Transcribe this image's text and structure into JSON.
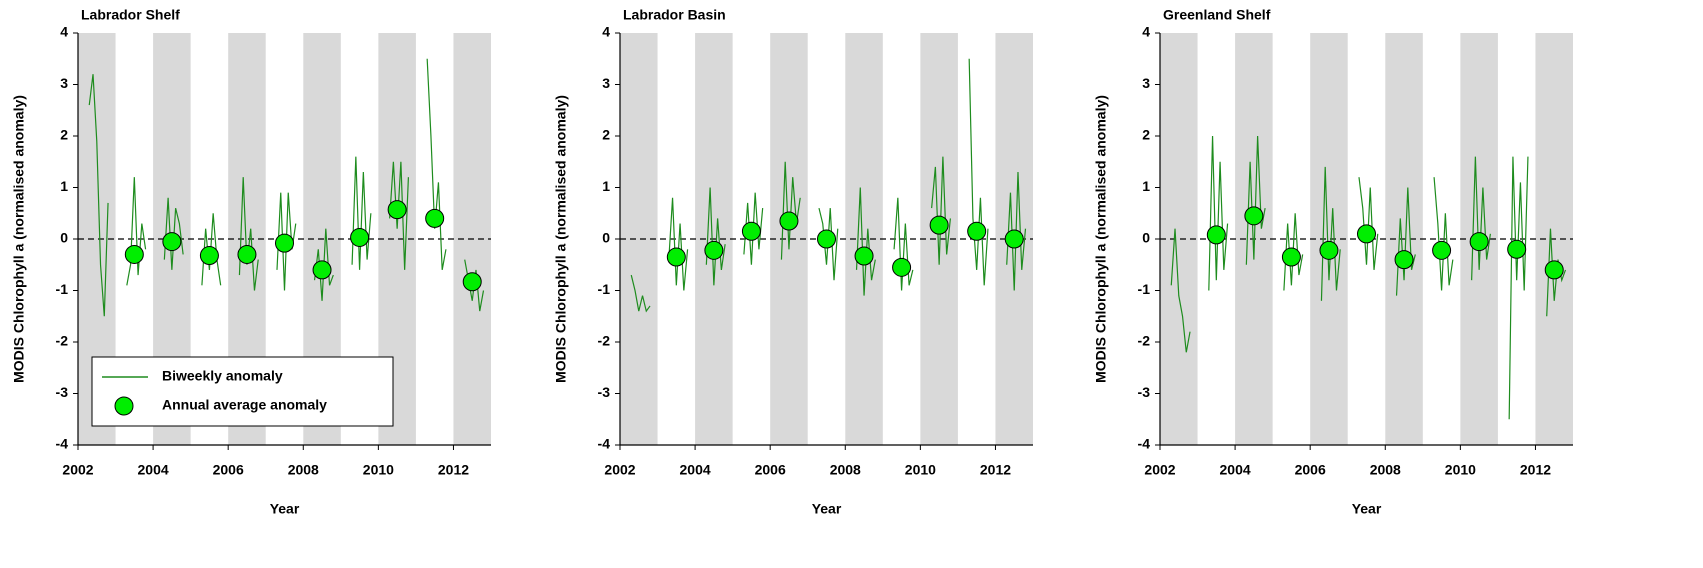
{
  "chart_data": [
    {
      "type": "line",
      "title": "Labrador Shelf",
      "xlabel": "Year",
      "ylabel": "MODIS Chlorophyll a (normalised anomaly)",
      "xlim": [
        2002,
        2013
      ],
      "xticks": [
        2002,
        2004,
        2006,
        2008,
        2010,
        2012
      ],
      "ylim": [
        -4,
        4
      ],
      "yticks": [
        -4,
        -3,
        -2,
        -1,
        0,
        1,
        2,
        3,
        4
      ],
      "legend": "lower left",
      "series": [
        {
          "name": "Biweekly anomaly",
          "color": "#1e8c1e",
          "x": [
            2002.3,
            2002.4,
            2002.5,
            2002.6,
            2002.7,
            2002.8,
            2002.95,
            2003.3,
            2003.4,
            2003.5,
            2003.6,
            2003.7,
            2003.8,
            2003.95,
            2004.3,
            2004.4,
            2004.5,
            2004.6,
            2004.7,
            2004.8,
            2004.95,
            2005.3,
            2005.4,
            2005.5,
            2005.6,
            2005.7,
            2005.8,
            2005.95,
            2006.3,
            2006.4,
            2006.5,
            2006.6,
            2006.7,
            2006.8,
            2006.95,
            2007.3,
            2007.4,
            2007.5,
            2007.6,
            2007.7,
            2007.8,
            2007.95,
            2008.3,
            2008.4,
            2008.5,
            2008.6,
            2008.7,
            2008.8,
            2008.95,
            2009.3,
            2009.4,
            2009.5,
            2009.6,
            2009.7,
            2009.8,
            2009.95,
            2010.3,
            2010.4,
            2010.5,
            2010.6,
            2010.7,
            2010.8,
            2010.95,
            2011.3,
            2011.4,
            2011.5,
            2011.6,
            2011.7,
            2011.8,
            2011.95,
            2012.3,
            2012.4,
            2012.5,
            2012.6,
            2012.7,
            2012.8,
            2012.95
          ],
          "values": [
            2.6,
            3.2,
            1.9,
            -0.5,
            -1.5,
            0.7,
            null,
            -0.9,
            -0.5,
            1.2,
            -0.7,
            0.3,
            -0.2,
            null,
            -0.4,
            0.8,
            -0.6,
            0.6,
            0.3,
            -0.3,
            null,
            -0.9,
            0.2,
            -0.6,
            0.5,
            -0.4,
            -0.9,
            null,
            -0.7,
            1.2,
            -0.5,
            0.2,
            -1.0,
            -0.4,
            null,
            -0.6,
            0.9,
            -1.0,
            0.9,
            -0.2,
            0.3,
            null,
            -0.8,
            -0.2,
            -1.2,
            0.2,
            -0.9,
            -0.7,
            null,
            -0.5,
            1.6,
            -0.6,
            1.3,
            -0.4,
            0.5,
            null,
            0.4,
            1.5,
            0.2,
            1.5,
            -0.6,
            1.2,
            null,
            3.5,
            2.0,
            0.2,
            1.1,
            -0.6,
            -0.2,
            null,
            -0.4,
            -0.8,
            -1.2,
            -0.6,
            -1.4,
            -1.0,
            null
          ]
        },
        {
          "name": "Annual average anomaly",
          "color": "#00ee00",
          "marker": "circle",
          "x": [
            2003.5,
            2004.5,
            2005.5,
            2006.5,
            2007.5,
            2008.5,
            2009.5,
            2010.5,
            2011.5,
            2012.5
          ],
          "values": [
            -0.3,
            -0.05,
            -0.32,
            -0.3,
            -0.08,
            -0.6,
            0.03,
            0.57,
            0.4,
            -0.83
          ]
        }
      ]
    },
    {
      "type": "line",
      "title": "Labrador Basin",
      "xlabel": "Year",
      "ylabel": "MODIS Chlorophyll a (normalised anomaly)",
      "xlim": [
        2002,
        2013
      ],
      "xticks": [
        2002,
        2004,
        2006,
        2008,
        2010,
        2012
      ],
      "ylim": [
        -4,
        4
      ],
      "yticks": [
        -4,
        -3,
        -2,
        -1,
        0,
        1,
        2,
        3,
        4
      ],
      "series": [
        {
          "color": "#1e8c1e",
          "x": [
            2002.3,
            2002.4,
            2002.5,
            2002.6,
            2002.7,
            2002.8,
            2002.95,
            2003.3,
            2003.4,
            2003.5,
            2003.6,
            2003.7,
            2003.8,
            2003.95,
            2004.3,
            2004.4,
            2004.5,
            2004.6,
            2004.7,
            2004.8,
            2004.95,
            2005.3,
            2005.4,
            2005.5,
            2005.6,
            2005.7,
            2005.8,
            2005.95,
            2006.3,
            2006.4,
            2006.5,
            2006.6,
            2006.7,
            2006.8,
            2006.95,
            2007.3,
            2007.4,
            2007.5,
            2007.6,
            2007.7,
            2007.8,
            2007.95,
            2008.3,
            2008.4,
            2008.5,
            2008.6,
            2008.7,
            2008.8,
            2008.95,
            2009.3,
            2009.4,
            2009.5,
            2009.6,
            2009.7,
            2009.8,
            2009.95,
            2010.3,
            2010.4,
            2010.5,
            2010.6,
            2010.7,
            2010.8,
            2010.95,
            2011.3,
            2011.4,
            2011.5,
            2011.6,
            2011.7,
            2011.8,
            2011.95,
            2012.3,
            2012.4,
            2012.5,
            2012.6,
            2012.7,
            2012.8,
            2012.95
          ],
          "values": [
            -0.7,
            -1.0,
            -1.4,
            -1.1,
            -1.4,
            -1.3,
            null,
            -0.4,
            0.8,
            -0.9,
            0.3,
            -1.0,
            -0.2,
            null,
            -0.5,
            1.0,
            -0.9,
            0.4,
            -0.6,
            -0.1,
            null,
            -0.3,
            0.7,
            -0.5,
            0.9,
            -0.2,
            0.6,
            null,
            -0.4,
            1.5,
            -0.2,
            1.2,
            0.3,
            0.8,
            null,
            0.6,
            0.3,
            -0.5,
            0.6,
            -0.8,
            0.2,
            null,
            -0.6,
            1.0,
            -1.1,
            0.2,
            -0.8,
            -0.4,
            null,
            -0.2,
            0.8,
            -1.0,
            0.3,
            -0.9,
            -0.6,
            null,
            0.6,
            1.4,
            -0.5,
            1.6,
            -0.3,
            0.4,
            null,
            3.5,
            0.4,
            -0.6,
            0.8,
            -0.9,
            0.2,
            null,
            -0.5,
            0.9,
            -1.0,
            1.3,
            -0.6,
            0.2,
            null
          ]
        },
        {
          "color": "#00ee00",
          "marker": "circle",
          "x": [
            2003.5,
            2004.5,
            2005.5,
            2006.5,
            2007.5,
            2008.5,
            2009.5,
            2010.5,
            2011.5,
            2012.5
          ],
          "values": [
            -0.35,
            -0.22,
            0.15,
            0.35,
            0.0,
            -0.33,
            -0.55,
            0.27,
            0.15,
            0.0
          ]
        }
      ]
    },
    {
      "type": "line",
      "title": "Greenland Shelf",
      "xlabel": "Year",
      "ylabel": "MODIS Chlorophyll a (normalised anomaly)",
      "xlim": [
        2002,
        2013
      ],
      "xticks": [
        2002,
        2004,
        2006,
        2008,
        2010,
        2012
      ],
      "ylim": [
        -4,
        4
      ],
      "yticks": [
        -4,
        -3,
        -2,
        -1,
        0,
        1,
        2,
        3,
        4
      ],
      "series": [
        {
          "color": "#1e8c1e",
          "x": [
            2002.3,
            2002.4,
            2002.5,
            2002.6,
            2002.7,
            2002.8,
            2002.95,
            2003.3,
            2003.4,
            2003.5,
            2003.6,
            2003.7,
            2003.8,
            2003.95,
            2004.3,
            2004.4,
            2004.5,
            2004.6,
            2004.7,
            2004.8,
            2004.95,
            2005.3,
            2005.4,
            2005.5,
            2005.6,
            2005.7,
            2005.8,
            2005.95,
            2006.3,
            2006.4,
            2006.5,
            2006.6,
            2006.7,
            2006.8,
            2006.95,
            2007.3,
            2007.4,
            2007.5,
            2007.6,
            2007.7,
            2007.8,
            2007.95,
            2008.3,
            2008.4,
            2008.5,
            2008.6,
            2008.7,
            2008.8,
            2008.95,
            2009.3,
            2009.4,
            2009.5,
            2009.6,
            2009.7,
            2009.8,
            2009.95,
            2010.3,
            2010.4,
            2010.5,
            2010.6,
            2010.7,
            2010.8,
            2010.95,
            2011.3,
            2011.4,
            2011.5,
            2011.6,
            2011.7,
            2011.8,
            2011.95,
            2012.3,
            2012.4,
            2012.5,
            2012.6,
            2012.7,
            2012.8,
            2012.95
          ],
          "values": [
            -0.9,
            0.2,
            -1.1,
            -1.5,
            -2.2,
            -1.8,
            null,
            -1.0,
            2.0,
            -0.8,
            1.5,
            -0.6,
            0.3,
            null,
            -0.5,
            1.5,
            -0.4,
            2.0,
            0.2,
            0.6,
            null,
            -1.0,
            0.3,
            -0.9,
            0.5,
            -0.7,
            -0.3,
            null,
            -1.2,
            1.4,
            -0.8,
            0.6,
            -1.0,
            -0.2,
            null,
            1.2,
            0.6,
            -0.5,
            1.0,
            -0.6,
            0.1,
            null,
            -1.1,
            0.4,
            -0.8,
            1.0,
            -0.6,
            -0.3,
            null,
            1.2,
            0.3,
            -1.0,
            0.5,
            -0.9,
            -0.4,
            null,
            -0.8,
            1.6,
            -0.6,
            1.0,
            -0.4,
            0.1,
            null,
            -3.5,
            1.6,
            -0.8,
            1.1,
            -1.0,
            1.6,
            null,
            -1.5,
            0.2,
            -1.2,
            -0.4,
            -0.8,
            -0.6,
            null
          ]
        },
        {
          "color": "#00ee00",
          "marker": "circle",
          "x": [
            2003.5,
            2004.5,
            2005.5,
            2006.5,
            2007.5,
            2008.5,
            2009.5,
            2010.5,
            2011.5,
            2012.5
          ],
          "values": [
            0.08,
            0.45,
            -0.35,
            -0.22,
            0.1,
            -0.4,
            -0.22,
            -0.05,
            -0.2,
            -0.6
          ]
        }
      ]
    }
  ]
}
